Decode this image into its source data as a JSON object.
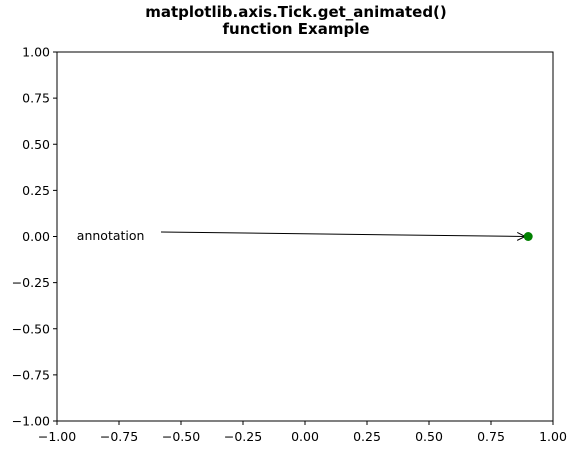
{
  "chart_data": {
    "type": "scatter",
    "title_lines": [
      "matplotlib.axis.Tick.get_animated()",
      "function Example"
    ],
    "xlabel": "",
    "ylabel": "",
    "xlim": [
      -1.0,
      1.0
    ],
    "ylim": [
      -1.0,
      1.0
    ],
    "x_ticks": [
      -1.0,
      -0.75,
      -0.5,
      -0.25,
      0.0,
      0.25,
      0.5,
      0.75,
      1.0
    ],
    "x_tick_labels": [
      "−1.00",
      "−0.75",
      "−0.50",
      "−0.25",
      "0.00",
      "0.25",
      "0.50",
      "0.75",
      "1.00"
    ],
    "y_ticks": [
      1.0,
      0.75,
      0.5,
      0.25,
      0.0,
      -0.25,
      -0.5,
      -0.75,
      -1.0
    ],
    "y_tick_labels": [
      "1.00",
      "0.75",
      "0.50",
      "0.25",
      "0.00",
      "−0.25",
      "−0.50",
      "−0.75",
      "−1.00"
    ],
    "grid": false,
    "points": [
      {
        "x": 0.9,
        "y": 0.0,
        "color": "#008000"
      }
    ],
    "annotation": {
      "text": "annotation",
      "text_x": -0.9,
      "text_y": 0.0,
      "arrow_to_x": 0.9,
      "arrow_to_y": 0.0
    }
  }
}
